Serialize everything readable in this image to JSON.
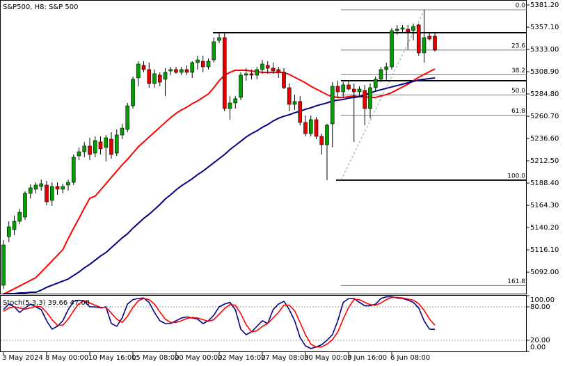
{
  "chart_data": [
    {
      "type": "candlestick",
      "title": "S&P500, H8: S&P 500",
      "categories": [
        "3 May 2024",
        null,
        null,
        null,
        null,
        null,
        null,
        null,
        "8 May 00:00",
        null,
        null,
        null,
        null,
        null,
        null,
        null,
        "10 May 16:00",
        null,
        null,
        null,
        null,
        null,
        null,
        null,
        "15 May 08:00",
        null,
        null,
        null,
        null,
        null,
        null,
        null,
        "20 May 00:00",
        null,
        null,
        null,
        null,
        null,
        null,
        null,
        "22 May 16:00",
        null,
        null,
        null,
        null,
        null,
        null,
        null,
        "27 May 08:00",
        null,
        null,
        null,
        null,
        null,
        null,
        null,
        "30 May 00:00",
        null,
        null,
        null,
        null,
        null,
        null,
        null,
        "3 Jun 16:00",
        null,
        null,
        null,
        null,
        null,
        null,
        null,
        "6 Jun 08:00",
        null,
        null,
        null,
        null,
        null,
        null,
        null,
        null
      ],
      "open": [
        5077.8,
        5130.5,
        5138.0,
        5147.0,
        5151.6,
        5177.2,
        5181.7,
        5184.7,
        5186.2,
        5169.6,
        5184.7,
        5181.7,
        5186.2,
        5189.2,
        5217.8,
        5222.3,
        5228.4,
        5220.8,
        5232.9,
        5226.9,
        5235.9,
        5220.8,
        5240.4,
        5246.4,
        5272.0,
        5302.2,
        5315.7,
        5311.2,
        5296.1,
        5305.2,
        5300.7,
        5309.7,
        5311.2,
        5308.2,
        5311.2,
        5308.2,
        5318.7,
        5320.2,
        5314.2,
        5321.7,
        5342.8,
        5345.8,
        5269.0,
        5275.1,
        5281.1,
        5305.2,
        5306.7,
        5305.2,
        5311.2,
        5315.7,
        5312.7,
        5311.2,
        5308.2,
        5291.6,
        5273.6,
        5276.6,
        5254.0,
        5241.9,
        5257.0,
        5238.9,
        5229.9,
        5252.5,
        5293.1,
        5287.1,
        5294.6,
        5290.1,
        5287.1,
        5288.6,
        5269.0,
        5291.6,
        5300.7,
        5311.2,
        5314.2,
        5353.4,
        5354.9,
        5354.9,
        5353.4,
        5359.4,
        5329.3,
        5347.3,
        5347.3
      ],
      "high": [
        5126.7,
        5147.0,
        5153.1,
        5160.6,
        5179.4,
        5186.9,
        5189.2,
        5192.2,
        5190.7,
        5189.2,
        5189.2,
        5187.7,
        5192.2,
        5219.3,
        5226.9,
        5232.9,
        5237.4,
        5238.9,
        5238.9,
        5240.4,
        5243.4,
        5246.4,
        5252.5,
        5275.1,
        5303.7,
        5320.2,
        5320.2,
        5318.7,
        5311.2,
        5308.2,
        5312.7,
        5314.2,
        5314.2,
        5314.2,
        5315.7,
        5320.2,
        5326.3,
        5326.3,
        5323.2,
        5345.8,
        5350.4,
        5350.4,
        5282.6,
        5282.6,
        5308.2,
        5312.7,
        5311.2,
        5314.2,
        5321.7,
        5320.2,
        5318.7,
        5314.2,
        5312.7,
        5296.1,
        5284.1,
        5282.6,
        5261.5,
        5261.5,
        5260.0,
        5241.9,
        5252.5,
        5297.6,
        5299.2,
        5297.6,
        5299.2,
        5296.1,
        5293.1,
        5294.6,
        5296.1,
        5303.7,
        5314.2,
        5318.7,
        5356.4,
        5359.4,
        5359.4,
        5359.4,
        5360.9,
        5360.9,
        5376.0,
        5351.9,
        5350.4
      ],
      "low": [
        5074.0,
        5124.5,
        5132.0,
        5144.0,
        5148.5,
        5171.9,
        5177.2,
        5180.2,
        5164.4,
        5163.6,
        5175.7,
        5177.2,
        5180.2,
        5186.2,
        5213.3,
        5216.3,
        5213.3,
        5216.3,
        5219.3,
        5211.8,
        5214.8,
        5217.8,
        5235.9,
        5243.4,
        5269.0,
        5293.1,
        5308.2,
        5291.6,
        5291.6,
        5293.1,
        5282.6,
        5305.2,
        5306.7,
        5305.2,
        5305.2,
        5302.2,
        5311.2,
        5308.2,
        5311.2,
        5318.7,
        5339.8,
        5266.0,
        5257.0,
        5269.0,
        5278.1,
        5299.2,
        5300.7,
        5300.7,
        5306.7,
        5306.7,
        5306.7,
        5302.2,
        5290.1,
        5266.0,
        5267.5,
        5250.9,
        5238.9,
        5238.9,
        5235.9,
        5219.3,
        5191.5,
        5226.9,
        5281.1,
        5281.1,
        5288.6,
        5232.9,
        5281.1,
        5250.9,
        5258.5,
        5287.1,
        5297.6,
        5299.2,
        5311.2,
        5348.9,
        5350.4,
        5332.3,
        5342.8,
        5326.3,
        5318.7,
        5342.8,
        5330.8
      ],
      "close": [
        5121.4,
        5141.0,
        5147.0,
        5156.8,
        5177.2,
        5183.2,
        5186.2,
        5187.7,
        5168.1,
        5184.7,
        5181.7,
        5184.7,
        5189.2,
        5216.3,
        5222.3,
        5228.4,
        5219.3,
        5234.4,
        5225.4,
        5237.4,
        5219.3,
        5240.4,
        5247.9,
        5272.0,
        5300.7,
        5317.2,
        5311.2,
        5296.1,
        5306.7,
        5297.6,
        5308.2,
        5311.2,
        5308.2,
        5311.2,
        5308.2,
        5318.7,
        5321.7,
        5314.2,
        5320.2,
        5341.3,
        5345.8,
        5269.0,
        5275.1,
        5279.6,
        5305.2,
        5306.7,
        5305.2,
        5311.2,
        5317.2,
        5312.7,
        5309.7,
        5308.2,
        5291.6,
        5273.6,
        5276.6,
        5254.0,
        5241.9,
        5257.0,
        5238.9,
        5229.9,
        5250.9,
        5293.1,
        5287.1,
        5294.6,
        5290.1,
        5287.1,
        5290.1,
        5269.0,
        5291.6,
        5300.7,
        5311.2,
        5314.2,
        5353.4,
        5354.9,
        5356.4,
        5351.9,
        5357.9,
        5329.3,
        5345.8,
        5344.3,
        5332.3
      ],
      "up_color": "#00a000",
      "down_color": "#e80000",
      "series": [
        {
          "color": "#ff0000",
          "values": [
            5068.0,
            5071.0,
            5074.0,
            5077.0,
            5080.0,
            5083.0,
            5086.0,
            5092.1,
            5098.1,
            5104.1,
            5110.2,
            5116.2,
            5128.2,
            5139.5,
            5150.1,
            5161.4,
            5171.9,
            5174.2,
            5180.9,
            5187.7,
            5194.5,
            5201.3,
            5208.0,
            5214.1,
            5220.8,
            5227.6,
            5232.9,
            5238.2,
            5243.4,
            5248.7,
            5254.0,
            5259.2,
            5263.8,
            5267.5,
            5270.5,
            5274.3,
            5277.3,
            5281.1,
            5284.8,
            5291.6,
            5299.2,
            5305.2,
            5308.2,
            5310.4,
            5310.4,
            5310.4,
            5309.7,
            5308.9,
            5308.2,
            5308.2,
            5308.2,
            5308.2,
            5308.2,
            5305.9,
            5302.9,
            5299.9,
            5296.9,
            5293.1,
            5290.1,
            5287.1,
            5284.1,
            5281.8,
            5281.1,
            5281.1,
            5281.8,
            5282.6,
            5281.8,
            5281.8,
            5281.1,
            5281.1,
            5282.6,
            5284.1,
            5286.3,
            5289.4,
            5292.4,
            5295.4,
            5299.2,
            5302.9,
            5305.9,
            5308.9,
            5311.9
          ]
        },
        {
          "color": "#000080",
          "values": [
            5068.7,
            5068.7,
            5068.7,
            5069.5,
            5069.5,
            5070.2,
            5070.2,
            5072.5,
            5075.5,
            5077.8,
            5080.0,
            5082.3,
            5084.5,
            5088.3,
            5092.1,
            5096.6,
            5100.4,
            5104.9,
            5109.4,
            5113.2,
            5118.4,
            5123.7,
            5129.0,
            5133.5,
            5139.5,
            5144.8,
            5150.1,
            5154.6,
            5159.8,
            5165.1,
            5171.1,
            5175.7,
            5180.9,
            5185.4,
            5189.2,
            5193.0,
            5197.5,
            5201.3,
            5205.8,
            5210.3,
            5214.8,
            5219.3,
            5224.6,
            5229.1,
            5233.6,
            5238.2,
            5241.9,
            5244.9,
            5248.7,
            5251.7,
            5255.5,
            5258.5,
            5260.7,
            5262.3,
            5264.5,
            5266.0,
            5268.3,
            5269.8,
            5272.0,
            5273.6,
            5275.1,
            5277.3,
            5278.1,
            5278.8,
            5280.3,
            5281.1,
            5281.8,
            5284.1,
            5285.6,
            5287.9,
            5289.4,
            5290.9,
            5292.4,
            5293.9,
            5295.4,
            5296.9,
            5298.4,
            5299.9,
            5300.7,
            5301.4,
            5302.2
          ]
        }
      ],
      "fib_levels": [
        {
          "value": 5376.0,
          "label": "0.0"
        },
        {
          "value": 5332.4,
          "label": "23.6"
        },
        {
          "value": 5305.5,
          "label": "38.2"
        },
        {
          "value": 5283.7,
          "label": "50.0"
        },
        {
          "value": 5261.9,
          "label": "61.8"
        },
        {
          "value": 5191.5,
          "label": "100.0"
        },
        {
          "value": 5077.5,
          "label": "161.8"
        }
      ],
      "hlines": [
        5351.1,
        5299.1
      ],
      "ylim": [
        5068.7,
        5386.5
      ],
      "yticks": [
        {
          "value": 5381.2,
          "label": "5381.20"
        },
        {
          "value": 5357.1,
          "label": "5357.10"
        },
        {
          "value": 5333,
          "label": "5333.00"
        },
        {
          "value": 5308.9,
          "label": "5308.90"
        },
        {
          "value": 5284.8,
          "label": "5284.80"
        },
        {
          "value": 5260.7,
          "label": "5260.70"
        },
        {
          "value": 5236.6,
          "label": "5236.60"
        },
        {
          "value": 5212.5,
          "label": "5212.50"
        },
        {
          "value": 5188.4,
          "label": "5188.40"
        },
        {
          "value": 5164.3,
          "label": "5164.30"
        },
        {
          "value": 5140.2,
          "label": "5140.20"
        },
        {
          "value": 5116.1,
          "label": "5116.10"
        },
        {
          "value": 5092,
          "label": "5092.00"
        }
      ]
    },
    {
      "type": "line",
      "title": "Stoch(5,3,3) 39.66 47.08",
      "series": [
        {
          "color": "#000080",
          "values": [
            75,
            85,
            80,
            70,
            78,
            85,
            80,
            75,
            55,
            40,
            45,
            55,
            75,
            90,
            92,
            90,
            80,
            80,
            78,
            80,
            50,
            45,
            60,
            85,
            93,
            95,
            96,
            88,
            70,
            55,
            50,
            50,
            55,
            60,
            62,
            60,
            58,
            50,
            55,
            65,
            80,
            85,
            88,
            75,
            40,
            30,
            35,
            45,
            55,
            50,
            75,
            85,
            90,
            75,
            55,
            25,
            10,
            5,
            8,
            12,
            20,
            30,
            55,
            88,
            95,
            95,
            88,
            82,
            82,
            85,
            95,
            98,
            98,
            96,
            95,
            92,
            88,
            78,
            55,
            40,
            39.66
          ]
        },
        {
          "color": "#ff0000",
          "values": [
            72,
            78,
            80,
            78,
            76,
            78,
            81,
            80,
            70,
            57,
            47,
            47,
            58,
            73,
            86,
            91,
            87,
            83,
            79,
            79,
            69,
            58,
            52,
            63,
            79,
            91,
            95,
            93,
            85,
            71,
            58,
            52,
            52,
            55,
            59,
            61,
            60,
            57,
            54,
            57,
            67,
            77,
            84,
            83,
            68,
            48,
            35,
            37,
            45,
            50,
            60,
            70,
            83,
            83,
            73,
            52,
            30,
            13,
            8,
            8,
            13,
            21,
            35,
            58,
            79,
            93,
            93,
            88,
            84,
            83,
            87,
            93,
            97,
            97,
            96,
            94,
            92,
            86,
            74,
            58,
            47.08
          ]
        }
      ],
      "ylim": [
        0,
        100
      ],
      "yticks": [
        {
          "value": 100,
          "label": "100.00"
        },
        {
          "value": 80,
          "label": "80.00"
        },
        {
          "value": 20,
          "label": "20.00"
        },
        {
          "value": 0,
          "label": "0.00"
        }
      ]
    }
  ]
}
